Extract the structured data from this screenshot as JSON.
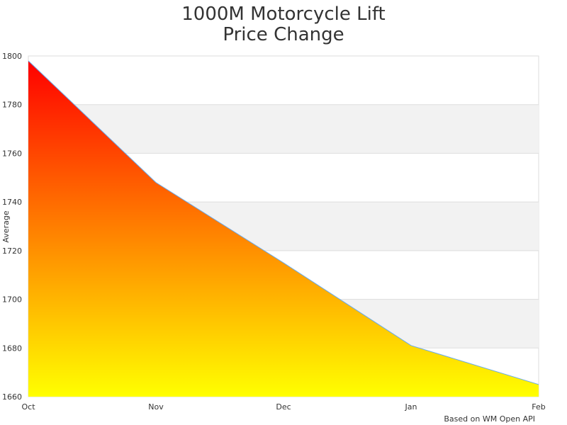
{
  "chart_data": {
    "type": "area",
    "title": [
      "1000M Motorcycle Lift",
      "Price Change"
    ],
    "xlabel": "",
    "ylabel": "Average",
    "categories": [
      "Oct",
      "Nov",
      "Dec",
      "Jan",
      "Feb"
    ],
    "series": [
      {
        "values": [
          1798,
          1748,
          1715,
          1681,
          1665
        ]
      }
    ],
    "ylim": [
      1660,
      1800
    ],
    "yticks": [
      1660,
      1680,
      1700,
      1720,
      1740,
      1760,
      1780,
      1800
    ],
    "grid": "alternating horizontal bands",
    "fill_gradient": [
      "#ff0000",
      "#ffff00"
    ],
    "line_color": "#66aaee",
    "legend": "none"
  },
  "credit": "Based on WM Open API"
}
